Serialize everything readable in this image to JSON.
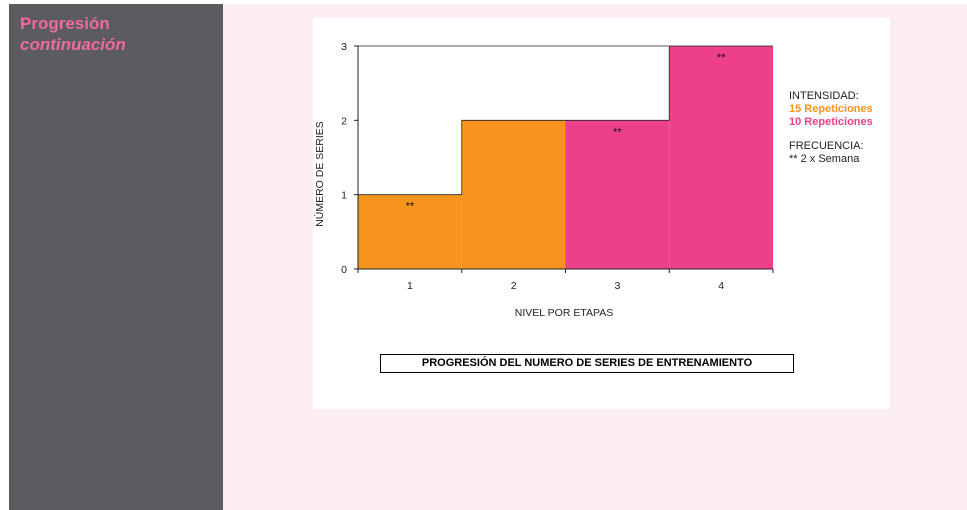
{
  "sidebar": {
    "title": "Progresión",
    "subtitle": "continuación"
  },
  "legend": {
    "intensity_label": "INTENSIDAD:",
    "item_orange": "15 Repeticiones",
    "item_pink": "10 Repeticiones",
    "frequency_label": "FRECUENCIA:",
    "frequency_value": "** 2 x Semana"
  },
  "chart_data": {
    "type": "bar",
    "title": "PROGRESIÓN DEL NUMERO DE SERIES DE ENTRENAMIENTO",
    "xlabel": "NIVEL POR ETAPAS",
    "ylabel": "NÚMERO DE SERIES",
    "categories": [
      "1",
      "2",
      "3",
      "4"
    ],
    "values": [
      1,
      2,
      2,
      3
    ],
    "colors": [
      "#f7941d",
      "#f7941d",
      "#ec4089",
      "#ec4089"
    ],
    "markers": [
      "**",
      "",
      "**",
      "**"
    ],
    "yticks": [
      "0",
      "1",
      "2",
      "3"
    ],
    "ylim": [
      0,
      3
    ],
    "grid": false,
    "legend_position": "right"
  }
}
